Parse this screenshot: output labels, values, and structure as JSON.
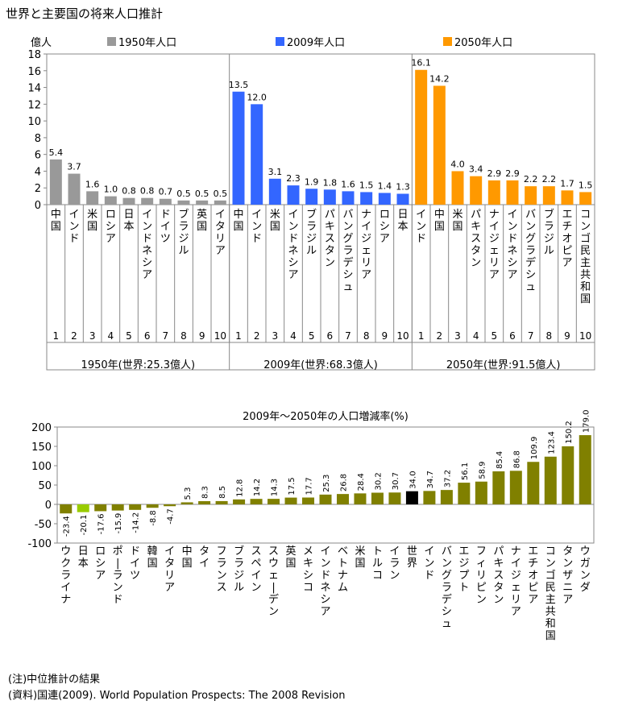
{
  "title": "世界と主要国の将来人口推計",
  "unit": "億人",
  "legend": [
    {
      "label": "1950年人口",
      "color": "#999999"
    },
    {
      "label": "2009年人口",
      "color": "#3366ff"
    },
    {
      "label": "2050年人口",
      "color": "#ff9900"
    }
  ],
  "chart_data": [
    {
      "type": "bar",
      "ylim": [
        0,
        18
      ],
      "yticks": [
        "0",
        "2",
        "4",
        "6",
        "8",
        "10",
        "12",
        "14",
        "16",
        "18"
      ],
      "grid": false,
      "legend_position": "top",
      "groups": [
        {
          "label": "1950年(世界:25.3億人)",
          "legend_label": "1950年人口",
          "color": "#999999",
          "categories": [
            "中国",
            "インド",
            "米国",
            "ロシア",
            "日本",
            "インドネシア",
            "ドイツ",
            "ブラジル",
            "英国",
            "イタリア"
          ],
          "ranks": [
            "1",
            "2",
            "3",
            "4",
            "5",
            "6",
            "7",
            "8",
            "9",
            "10"
          ],
          "values": [
            5.4,
            3.7,
            1.6,
            1.0,
            0.8,
            0.8,
            0.7,
            0.5,
            0.5,
            0.5
          ],
          "value_labels": [
            "5.4",
            "3.7",
            "1.6",
            "1.0",
            "0.8",
            "0.8",
            "0.7",
            "0.5",
            "0.5",
            "0.5"
          ]
        },
        {
          "label": "2009年(世界:68.3億人)",
          "legend_label": "2009年人口",
          "color": "#3366ff",
          "categories": [
            "中国",
            "インド",
            "米国",
            "インドネシア",
            "ブラジル",
            "パキスタン",
            "バングラデシュ",
            "ナイジェリア",
            "ロシア",
            "日本"
          ],
          "ranks": [
            "1",
            "2",
            "3",
            "4",
            "5",
            "6",
            "7",
            "8",
            "9",
            "10"
          ],
          "values": [
            13.5,
            12.0,
            3.1,
            2.3,
            1.9,
            1.8,
            1.6,
            1.5,
            1.4,
            1.3
          ],
          "value_labels": [
            "13.5",
            "12.0",
            "3.1",
            "2.3",
            "1.9",
            "1.8",
            "1.6",
            "1.5",
            "1.4",
            "1.3"
          ]
        },
        {
          "label": "2050年(世界:91.5億人)",
          "legend_label": "2050年人口",
          "color": "#ff9900",
          "categories": [
            "インド",
            "中国",
            "米国",
            "パキスタン",
            "ナイジェリア",
            "インドネシア",
            "バングラデシュ",
            "ブラジル",
            "エチオピア",
            "コンゴ民主共和国"
          ],
          "ranks": [
            "1",
            "2",
            "3",
            "4",
            "5",
            "6",
            "7",
            "8",
            "9",
            "10"
          ],
          "values": [
            16.1,
            14.2,
            4.0,
            3.4,
            2.9,
            2.9,
            2.2,
            2.2,
            1.7,
            1.5
          ],
          "value_labels": [
            "16.1",
            "14.2",
            "4.0",
            "3.4",
            "2.9",
            "2.9",
            "2.2",
            "2.2",
            "1.7",
            "1.5"
          ]
        }
      ]
    },
    {
      "type": "bar",
      "title": "2009年〜2050年の人口増減率(%)",
      "ylim": [
        -100,
        200
      ],
      "yticks": [
        "-100",
        "-50",
        "0",
        "50",
        "100",
        "150",
        "200"
      ],
      "grid": false,
      "categories": [
        "ウクライナ",
        "日本",
        "ロシア",
        "ポーランド",
        "ドイツ",
        "韓国",
        "イタリア",
        "中国",
        "タイ",
        "フランス",
        "ブラジル",
        "スペイン",
        "スウェーデン",
        "英国",
        "メキシコ",
        "インドネシア",
        "ベトナム",
        "米国",
        "トルコ",
        "イラン",
        "世界",
        "インド",
        "バングラデシュ",
        "エジプト",
        "フィリピン",
        "パキスタン",
        "ナイジェリア",
        "エチオピア",
        "コンゴ民主共和国",
        "タンザニア",
        "ウガンダ"
      ],
      "values": [
        -23.4,
        -20.1,
        -17.6,
        -15.9,
        -14.2,
        -8.8,
        -4.7,
        5.3,
        8.3,
        8.5,
        12.8,
        14.2,
        14.3,
        17.5,
        17.7,
        25.3,
        26.8,
        28.4,
        30.2,
        30.7,
        34.0,
        34.7,
        37.2,
        56.1,
        58.9,
        85.4,
        86.8,
        109.9,
        123.4,
        150.2,
        179.0
      ],
      "value_labels": [
        "-23.4",
        "-20.1",
        "-17.6",
        "-15.9",
        "-14.2",
        "-8.8",
        "-4.7",
        "5.3",
        "8.3",
        "8.5",
        "12.8",
        "14.2",
        "14.3",
        "17.5",
        "17.7",
        "25.3",
        "26.8",
        "28.4",
        "30.2",
        "30.7",
        "34.0",
        "34.7",
        "37.2",
        "56.1",
        "58.9",
        "85.4",
        "86.8",
        "109.9",
        "123.4",
        "150.2",
        "179.0"
      ],
      "colors": {
        "default": "#808000",
        "japan": "#99cc00",
        "world": "#000000"
      },
      "highlight": {
        "日本": "japan",
        "世界": "world"
      }
    }
  ],
  "notes": [
    "(注)中位推計の結果",
    "(資料)国連(2009). World Population Prospects: The 2008 Revision"
  ]
}
